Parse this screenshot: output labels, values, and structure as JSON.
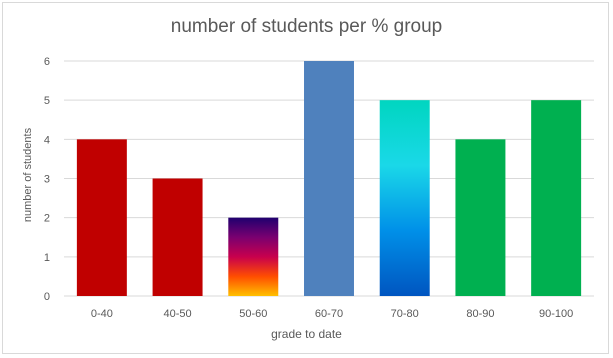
{
  "chart_data": {
    "type": "bar",
    "title": "number of students per % group",
    "xlabel": "grade to date",
    "ylabel": "number of students",
    "categories": [
      "0-40",
      "40-50",
      "50-60",
      "60-70",
      "70-80",
      "80-90",
      "90-100"
    ],
    "values": [
      4,
      3,
      2,
      6,
      5,
      4,
      5
    ],
    "ylim": [
      0,
      6
    ],
    "yticks": [
      0,
      1,
      2,
      3,
      4,
      5,
      6
    ],
    "grid": true,
    "legend": "none"
  },
  "colors": {
    "bar_fills": [
      {
        "type": "solid",
        "color": "#c00000"
      },
      {
        "type": "solid",
        "color": "#c00000"
      },
      {
        "type": "gradient",
        "stops": [
          "#1f006f",
          "#7a0070",
          "#c8004d",
          "#ff4d00",
          "#ffc000"
        ]
      },
      {
        "type": "solid",
        "color": "#4f81bd"
      },
      {
        "type": "gradient",
        "stops": [
          "#00d6c0",
          "#1ad8e8",
          "#0090e8",
          "#0055c0"
        ]
      },
      {
        "type": "solid",
        "color": "#00b050"
      },
      {
        "type": "solid",
        "color": "#00b050"
      }
    ],
    "gridline": "#d9d9d9",
    "text": "#595959"
  }
}
